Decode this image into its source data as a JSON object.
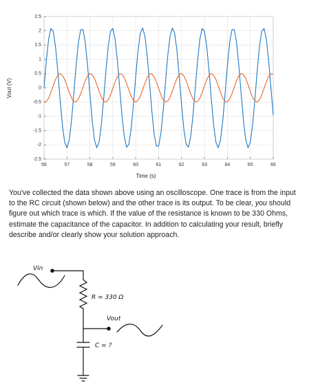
{
  "chart_data": {
    "type": "line",
    "ylabel": "Vout (V)",
    "xlabel": "Time (s)",
    "xlim": [
      56,
      66
    ],
    "xticks": [
      56,
      57,
      58,
      59,
      60,
      61,
      62,
      63,
      64,
      65,
      66
    ],
    "ylim": [
      -2.5,
      2.5
    ],
    "yticks": [
      -2.5,
      -2,
      -1.5,
      -1,
      -0.5,
      0,
      0.5,
      1,
      1.5,
      2,
      2.5
    ],
    "grid": true,
    "x": [
      56,
      56.1,
      56.2,
      56.3,
      56.4,
      56.5,
      56.6,
      56.7,
      56.8,
      56.9,
      57,
      57.1,
      57.2,
      57.3,
      57.4,
      57.5,
      57.6,
      57.7,
      57.8,
      57.9,
      58,
      58.1,
      58.2,
      58.3,
      58.4,
      58.5,
      58.6,
      58.7,
      58.8,
      58.9,
      59,
      59.1,
      59.2,
      59.3,
      59.4,
      59.5,
      59.6,
      59.7,
      59.8,
      59.9,
      60,
      60.1,
      60.2,
      60.3,
      60.4,
      60.5,
      60.6,
      60.7,
      60.8,
      60.9,
      61,
      61.1,
      61.2,
      61.3,
      61.4,
      61.5,
      61.6,
      61.7,
      61.8,
      61.9,
      62,
      62.1,
      62.2,
      62.3,
      62.4,
      62.5,
      62.6,
      62.7,
      62.8,
      62.9,
      63,
      63.1,
      63.2,
      63.3,
      63.4,
      63.5,
      63.6,
      63.7,
      63.8,
      63.9,
      64,
      64.1,
      64.2,
      64.3,
      64.4,
      64.5,
      64.6,
      64.7,
      64.8,
      64.9,
      65,
      65.1,
      65.2,
      65.3,
      65.4,
      65.5,
      65.6,
      65.7,
      65.8,
      65.9,
      66
    ],
    "series": [
      {
        "color": "#1f77c4",
        "values": [
          0,
          0.96,
          1.71,
          2.08,
          1.98,
          1.45,
          0.59,
          -0.4,
          -1.3,
          -1.91,
          -2.1,
          -1.82,
          -1.14,
          -0.2,
          0.78,
          1.59,
          2.04,
          2.04,
          1.59,
          0.78,
          -0.2,
          -1.14,
          -1.82,
          -2.1,
          -1.91,
          -1.3,
          -0.4,
          0.59,
          1.45,
          1.98,
          2.08,
          1.71,
          0.96,
          0,
          -0.96,
          -1.71,
          -2.08,
          -1.98,
          -1.45,
          -0.59,
          0.4,
          1.3,
          1.91,
          2.1,
          1.82,
          1.14,
          0.2,
          -0.78,
          -1.59,
          -2.04,
          -2.04,
          -1.59,
          -0.78,
          0.2,
          1.14,
          1.82,
          2.1,
          1.91,
          1.3,
          0.4,
          -0.59,
          -1.45,
          -1.98,
          -2.08,
          -1.71,
          -0.96,
          0,
          0.96,
          1.71,
          2.08,
          1.98,
          1.45,
          0.59,
          -0.4,
          -1.3,
          -1.91,
          -2.1,
          -1.82,
          -1.14,
          -0.2,
          0.78,
          1.59,
          2.04,
          2.04,
          1.59,
          0.78,
          -0.2,
          -1.14,
          -1.82,
          -2.1,
          -1.91,
          -1.3,
          -0.4,
          0.59,
          1.45,
          1.98,
          2.08,
          1.71,
          0.96,
          0,
          -0.96
        ]
      },
      {
        "color": "#e8662a",
        "values": [
          -0.49,
          -0.48,
          -0.36,
          -0.16,
          0.07,
          0.29,
          0.44,
          0.5,
          0.44,
          0.29,
          0.07,
          -0.16,
          -0.36,
          -0.48,
          -0.49,
          -0.39,
          -0.21,
          0.02,
          0.25,
          0.42,
          0.5,
          0.46,
          0.33,
          0.12,
          -0.12,
          -0.33,
          -0.46,
          -0.5,
          -0.42,
          -0.25,
          -0.02,
          0.21,
          0.39,
          0.49,
          0.48,
          0.36,
          0.16,
          -0.07,
          -0.29,
          -0.44,
          -0.5,
          -0.44,
          -0.29,
          -0.07,
          0.16,
          0.36,
          0.48,
          0.49,
          0.39,
          0.21,
          -0.02,
          -0.25,
          -0.42,
          -0.5,
          -0.46,
          -0.33,
          -0.12,
          0.12,
          0.33,
          0.46,
          0.5,
          0.42,
          0.25,
          0.02,
          -0.21,
          -0.39,
          -0.49,
          -0.48,
          -0.36,
          -0.16,
          0.07,
          0.29,
          0.44,
          0.5,
          0.44,
          0.29,
          0.07,
          -0.16,
          -0.36,
          -0.48,
          -0.49,
          -0.39,
          -0.21,
          0.02,
          0.25,
          0.42,
          0.5,
          0.46,
          0.33,
          0.12,
          -0.12,
          -0.33,
          -0.46,
          -0.5,
          -0.42,
          -0.25,
          -0.02,
          0.21,
          0.39,
          0.49,
          0.48
        ]
      }
    ]
  },
  "paragraph": [
    "You've collected the data shown above using an oscilloscope. One trace is from the input to the RC circuit (shown below) and the other trace is its output. To be clear, ",
    "you",
    " should figure out which trace is which. If the value of the resistance is known to be 330 Ohms, estimate the capacitance of the capacitor. In addition to calculating your result, briefly describe and/or clearly show your solution approach."
  ],
  "diagram": {
    "labels": [
      "Vin",
      "R = 330 Ω",
      "Vout",
      "C = ?"
    ]
  }
}
